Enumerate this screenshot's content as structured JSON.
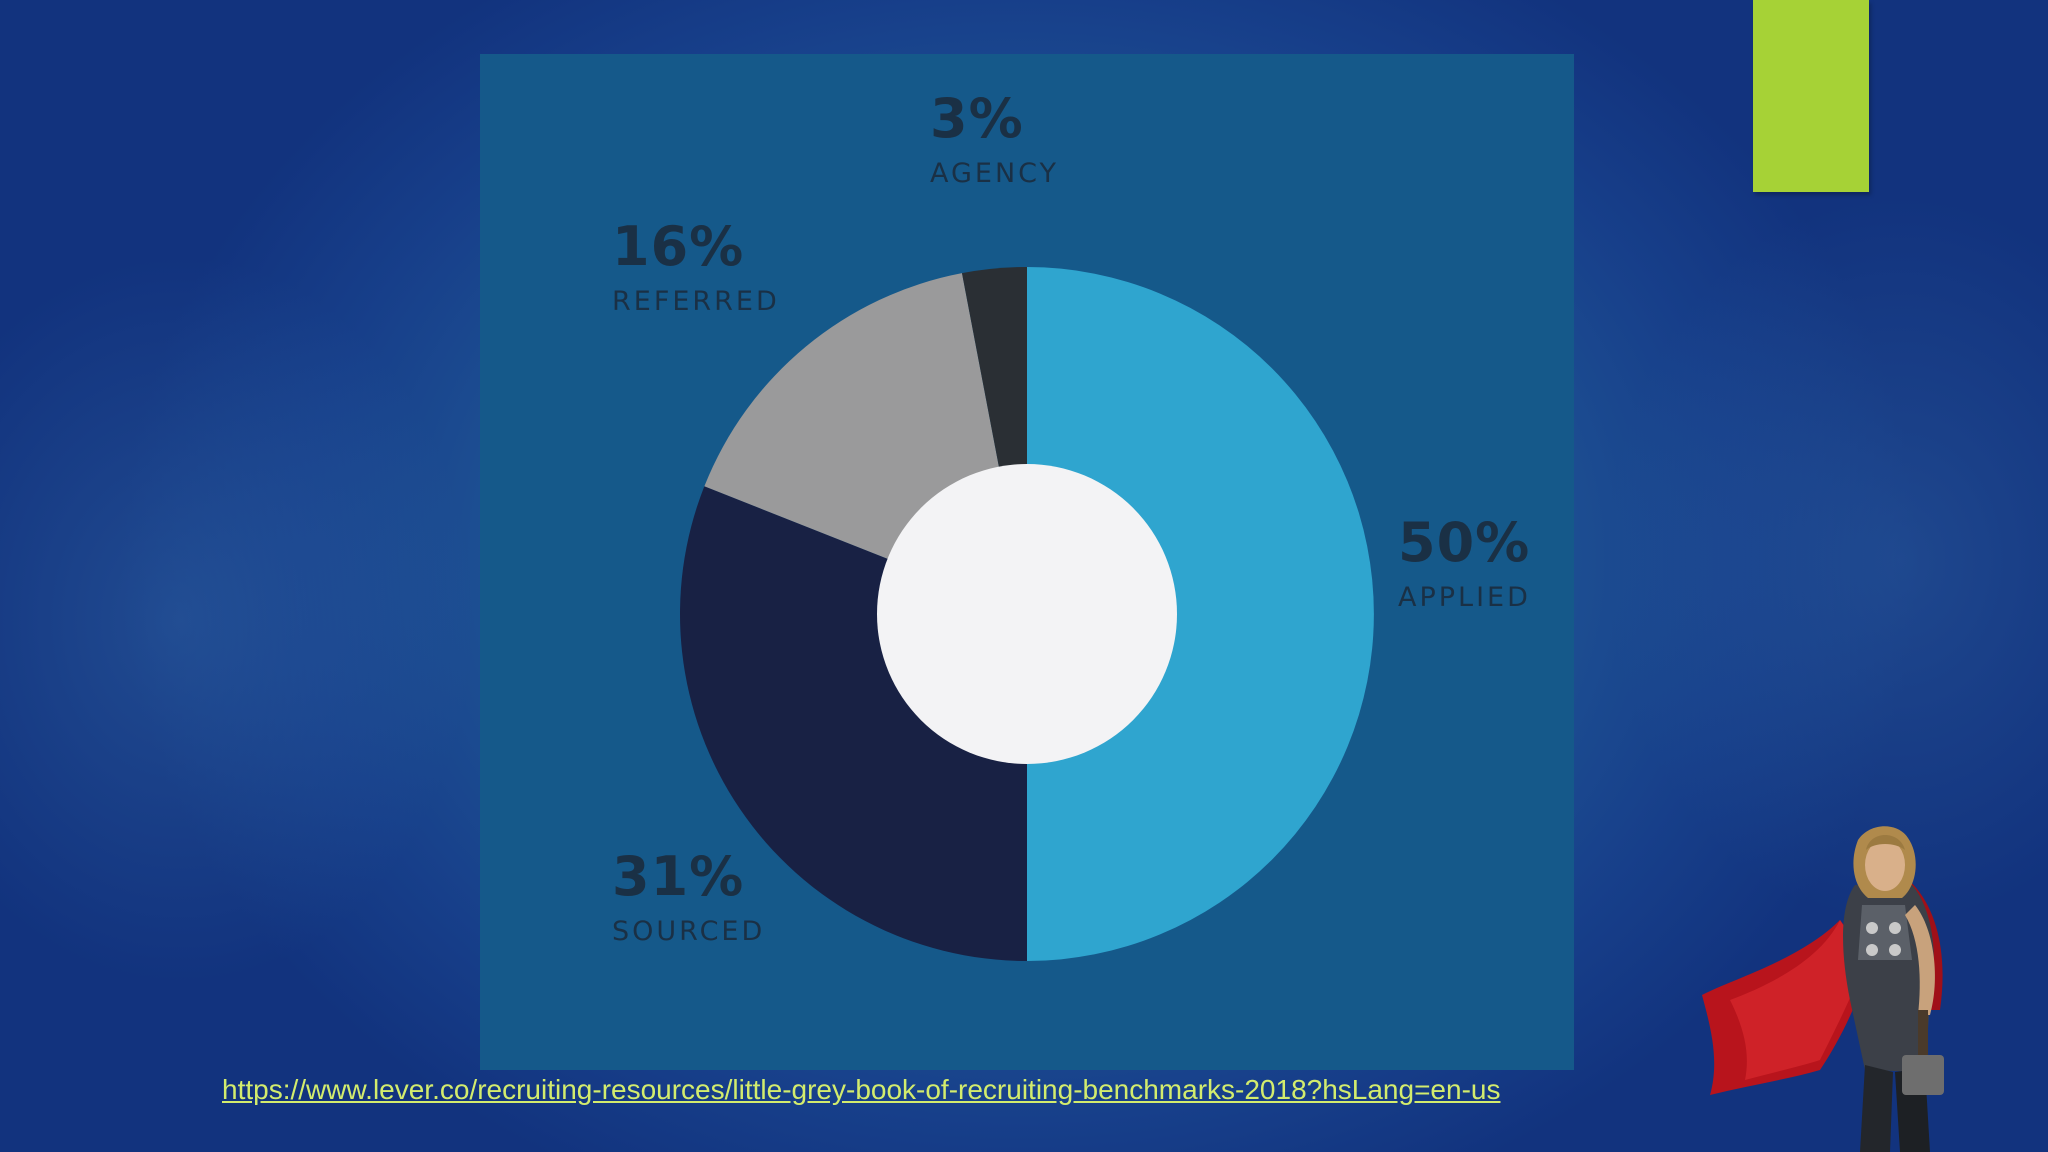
{
  "colors": {
    "accent": "#a6d236",
    "link": "#d3ec6d",
    "hole": "#f3f3f5"
  },
  "chart_data": {
    "type": "pie",
    "style": "donut",
    "categories": [
      "APPLIED",
      "SOURCED",
      "REFERRED",
      "AGENCY"
    ],
    "values": [
      50,
      31,
      16,
      3
    ],
    "labels": [
      "50%",
      "31%",
      "16%",
      "3%"
    ],
    "colors": [
      "#2fa5cf",
      "#182144",
      "#9a9a9b",
      "#2a2f34"
    ],
    "start_angle_deg": 0,
    "direction": "clockwise"
  },
  "source": {
    "link_text": "https://www.lever.co/recruiting-resources/little-grey-book-of-recruiting-benchmarks-2018?hsLang=en-us"
  },
  "decor": {
    "hero_icon": "caped-superhero-figure"
  }
}
